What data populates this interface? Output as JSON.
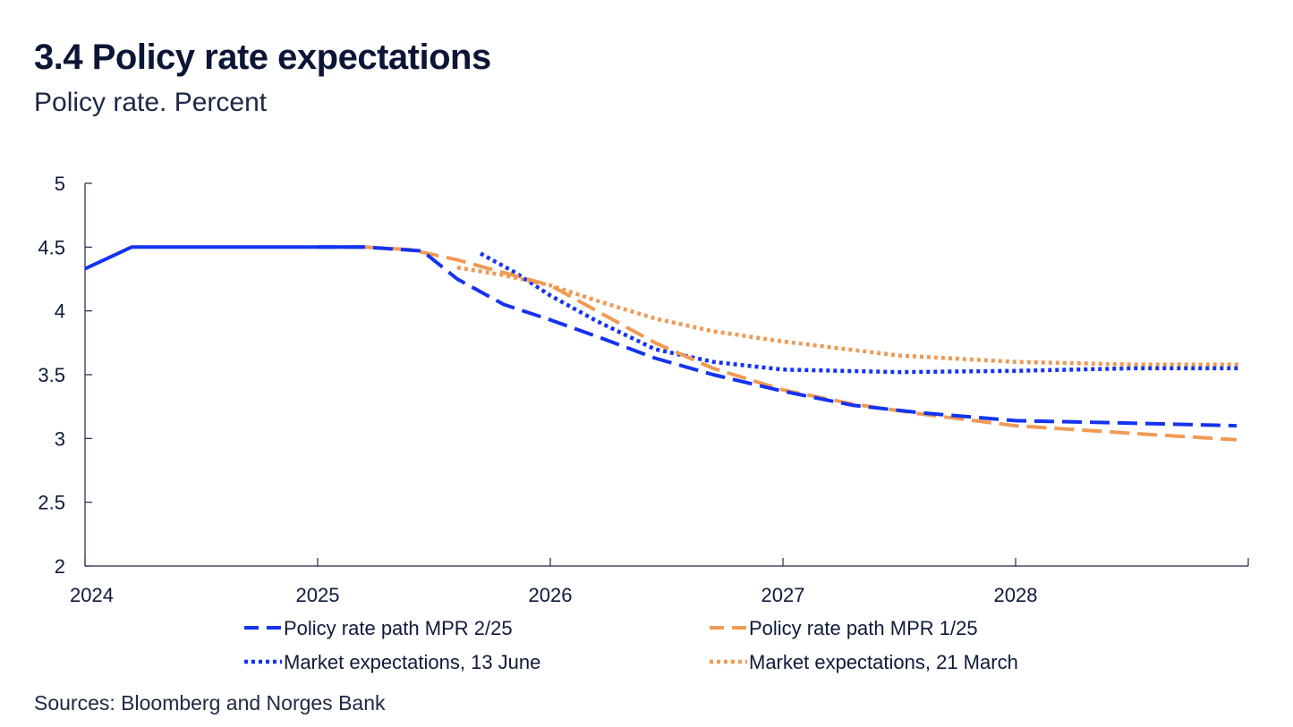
{
  "title": "3.4 Policy rate expectations",
  "subtitle": "Policy rate. Percent",
  "source": "Sources: Bloomberg and Norges Bank",
  "chart_data": {
    "type": "line",
    "title": "3.4 Policy rate expectations",
    "subtitle": "Policy rate. Percent",
    "xlabel": "",
    "ylabel": "",
    "xlim": [
      2024.0,
      2029.0
    ],
    "ylim": [
      2,
      5
    ],
    "y_ticks": [
      2,
      2.5,
      3,
      3.5,
      4,
      4.5,
      5
    ],
    "y_tick_labels": [
      "2",
      "2.5",
      "3",
      "3.5",
      "4",
      "4.5",
      "5"
    ],
    "x_ticks": [
      2024,
      2025,
      2026,
      2027,
      2028
    ],
    "x_tick_labels": [
      "2024",
      "2025",
      "2026",
      "2027",
      "2028"
    ],
    "grid": false,
    "legend_position": "bottom",
    "series": [
      {
        "name": "Policy rate path MPR 2/25",
        "show_in_legend": true,
        "color": "#1533f0",
        "style": "dashed",
        "points": [
          [
            2025.0,
            4.5
          ],
          [
            2025.2,
            4.5
          ],
          [
            2025.45,
            4.47
          ],
          [
            2025.6,
            4.25
          ],
          [
            2025.8,
            4.05
          ],
          [
            2026.0,
            3.93
          ],
          [
            2026.2,
            3.8
          ],
          [
            2026.45,
            3.63
          ],
          [
            2026.7,
            3.5
          ],
          [
            2027.0,
            3.37
          ],
          [
            2027.3,
            3.26
          ],
          [
            2027.6,
            3.2
          ],
          [
            2028.0,
            3.14
          ],
          [
            2028.5,
            3.12
          ],
          [
            2028.95,
            3.1
          ]
        ]
      },
      {
        "name": "Policy rate path MPR 1/25",
        "show_in_legend": true,
        "color": "#f09a55",
        "style": "dashed",
        "points": [
          [
            2025.2,
            4.5
          ],
          [
            2025.4,
            4.48
          ],
          [
            2025.6,
            4.4
          ],
          [
            2025.8,
            4.3
          ],
          [
            2026.0,
            4.2
          ],
          [
            2026.2,
            4.0
          ],
          [
            2026.45,
            3.75
          ],
          [
            2026.7,
            3.55
          ],
          [
            2027.0,
            3.38
          ],
          [
            2027.3,
            3.27
          ],
          [
            2027.6,
            3.19
          ],
          [
            2028.0,
            3.1
          ],
          [
            2028.5,
            3.04
          ],
          [
            2028.95,
            2.99
          ]
        ]
      },
      {
        "name": "Market expectations, 13 June",
        "show_in_legend": true,
        "color": "#1533f0",
        "style": "dotted",
        "points": [
          [
            2025.7,
            4.45
          ],
          [
            2025.85,
            4.3
          ],
          [
            2026.0,
            4.12
          ],
          [
            2026.2,
            3.92
          ],
          [
            2026.45,
            3.7
          ],
          [
            2026.7,
            3.6
          ],
          [
            2027.0,
            3.54
          ],
          [
            2027.5,
            3.52
          ],
          [
            2028.0,
            3.53
          ],
          [
            2028.5,
            3.55
          ],
          [
            2028.97,
            3.55
          ]
        ]
      },
      {
        "name": "Market expectations, 21 March",
        "show_in_legend": true,
        "color": "#f09a55",
        "style": "dotted",
        "points": [
          [
            2025.6,
            4.34
          ],
          [
            2025.8,
            4.28
          ],
          [
            2026.0,
            4.2
          ],
          [
            2026.2,
            4.08
          ],
          [
            2026.45,
            3.94
          ],
          [
            2026.7,
            3.84
          ],
          [
            2027.0,
            3.76
          ],
          [
            2027.5,
            3.65
          ],
          [
            2028.0,
            3.6
          ],
          [
            2028.5,
            3.58
          ],
          [
            2028.97,
            3.58
          ]
        ]
      },
      {
        "name": "Policy rate",
        "show_in_legend": false,
        "color": "#1533f0",
        "style": "solid",
        "points": [
          [
            2024.0,
            4.33
          ],
          [
            2024.2,
            4.5
          ],
          [
            2025.2,
            4.5
          ]
        ]
      }
    ]
  }
}
